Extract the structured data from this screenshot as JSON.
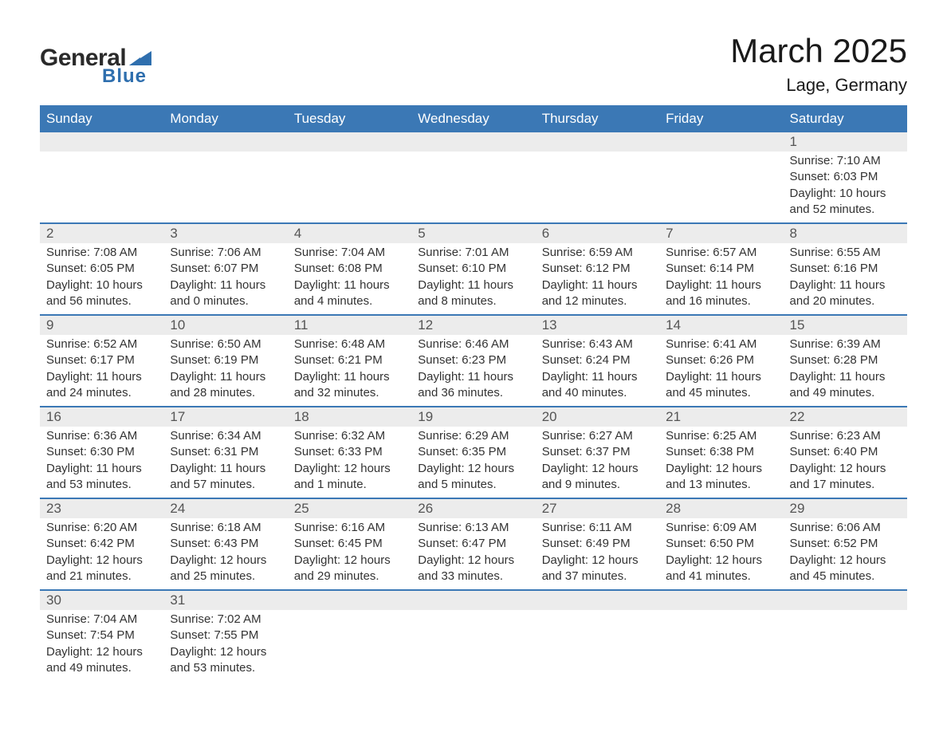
{
  "logo": {
    "text1": "General",
    "text2": "Blue",
    "mark_color": "#2f6fae"
  },
  "title": "March 2025",
  "location": "Lage, Germany",
  "colors": {
    "header_bg": "#3b78b5",
    "header_text": "#ffffff",
    "daynum_bg": "#ececec",
    "border": "#3b78b5",
    "body_text": "#333333"
  },
  "typography": {
    "title_fontsize": 42,
    "location_fontsize": 22,
    "header_fontsize": 17,
    "daynum_fontsize": 17,
    "body_fontsize": 15
  },
  "day_headers": [
    "Sunday",
    "Monday",
    "Tuesday",
    "Wednesday",
    "Thursday",
    "Friday",
    "Saturday"
  ],
  "weeks": [
    [
      null,
      null,
      null,
      null,
      null,
      null,
      {
        "n": "1",
        "sunrise": "7:10 AM",
        "sunset": "6:03 PM",
        "daylight": "10 hours and 52 minutes."
      }
    ],
    [
      {
        "n": "2",
        "sunrise": "7:08 AM",
        "sunset": "6:05 PM",
        "daylight": "10 hours and 56 minutes."
      },
      {
        "n": "3",
        "sunrise": "7:06 AM",
        "sunset": "6:07 PM",
        "daylight": "11 hours and 0 minutes."
      },
      {
        "n": "4",
        "sunrise": "7:04 AM",
        "sunset": "6:08 PM",
        "daylight": "11 hours and 4 minutes."
      },
      {
        "n": "5",
        "sunrise": "7:01 AM",
        "sunset": "6:10 PM",
        "daylight": "11 hours and 8 minutes."
      },
      {
        "n": "6",
        "sunrise": "6:59 AM",
        "sunset": "6:12 PM",
        "daylight": "11 hours and 12 minutes."
      },
      {
        "n": "7",
        "sunrise": "6:57 AM",
        "sunset": "6:14 PM",
        "daylight": "11 hours and 16 minutes."
      },
      {
        "n": "8",
        "sunrise": "6:55 AM",
        "sunset": "6:16 PM",
        "daylight": "11 hours and 20 minutes."
      }
    ],
    [
      {
        "n": "9",
        "sunrise": "6:52 AM",
        "sunset": "6:17 PM",
        "daylight": "11 hours and 24 minutes."
      },
      {
        "n": "10",
        "sunrise": "6:50 AM",
        "sunset": "6:19 PM",
        "daylight": "11 hours and 28 minutes."
      },
      {
        "n": "11",
        "sunrise": "6:48 AM",
        "sunset": "6:21 PM",
        "daylight": "11 hours and 32 minutes."
      },
      {
        "n": "12",
        "sunrise": "6:46 AM",
        "sunset": "6:23 PM",
        "daylight": "11 hours and 36 minutes."
      },
      {
        "n": "13",
        "sunrise": "6:43 AM",
        "sunset": "6:24 PM",
        "daylight": "11 hours and 40 minutes."
      },
      {
        "n": "14",
        "sunrise": "6:41 AM",
        "sunset": "6:26 PM",
        "daylight": "11 hours and 45 minutes."
      },
      {
        "n": "15",
        "sunrise": "6:39 AM",
        "sunset": "6:28 PM",
        "daylight": "11 hours and 49 minutes."
      }
    ],
    [
      {
        "n": "16",
        "sunrise": "6:36 AM",
        "sunset": "6:30 PM",
        "daylight": "11 hours and 53 minutes."
      },
      {
        "n": "17",
        "sunrise": "6:34 AM",
        "sunset": "6:31 PM",
        "daylight": "11 hours and 57 minutes."
      },
      {
        "n": "18",
        "sunrise": "6:32 AM",
        "sunset": "6:33 PM",
        "daylight": "12 hours and 1 minute."
      },
      {
        "n": "19",
        "sunrise": "6:29 AM",
        "sunset": "6:35 PM",
        "daylight": "12 hours and 5 minutes."
      },
      {
        "n": "20",
        "sunrise": "6:27 AM",
        "sunset": "6:37 PM",
        "daylight": "12 hours and 9 minutes."
      },
      {
        "n": "21",
        "sunrise": "6:25 AM",
        "sunset": "6:38 PM",
        "daylight": "12 hours and 13 minutes."
      },
      {
        "n": "22",
        "sunrise": "6:23 AM",
        "sunset": "6:40 PM",
        "daylight": "12 hours and 17 minutes."
      }
    ],
    [
      {
        "n": "23",
        "sunrise": "6:20 AM",
        "sunset": "6:42 PM",
        "daylight": "12 hours and 21 minutes."
      },
      {
        "n": "24",
        "sunrise": "6:18 AM",
        "sunset": "6:43 PM",
        "daylight": "12 hours and 25 minutes."
      },
      {
        "n": "25",
        "sunrise": "6:16 AM",
        "sunset": "6:45 PM",
        "daylight": "12 hours and 29 minutes."
      },
      {
        "n": "26",
        "sunrise": "6:13 AM",
        "sunset": "6:47 PM",
        "daylight": "12 hours and 33 minutes."
      },
      {
        "n": "27",
        "sunrise": "6:11 AM",
        "sunset": "6:49 PM",
        "daylight": "12 hours and 37 minutes."
      },
      {
        "n": "28",
        "sunrise": "6:09 AM",
        "sunset": "6:50 PM",
        "daylight": "12 hours and 41 minutes."
      },
      {
        "n": "29",
        "sunrise": "6:06 AM",
        "sunset": "6:52 PM",
        "daylight": "12 hours and 45 minutes."
      }
    ],
    [
      {
        "n": "30",
        "sunrise": "7:04 AM",
        "sunset": "7:54 PM",
        "daylight": "12 hours and 49 minutes."
      },
      {
        "n": "31",
        "sunrise": "7:02 AM",
        "sunset": "7:55 PM",
        "daylight": "12 hours and 53 minutes."
      },
      null,
      null,
      null,
      null,
      null
    ]
  ],
  "labels": {
    "sunrise": "Sunrise:",
    "sunset": "Sunset:",
    "daylight": "Daylight:"
  }
}
